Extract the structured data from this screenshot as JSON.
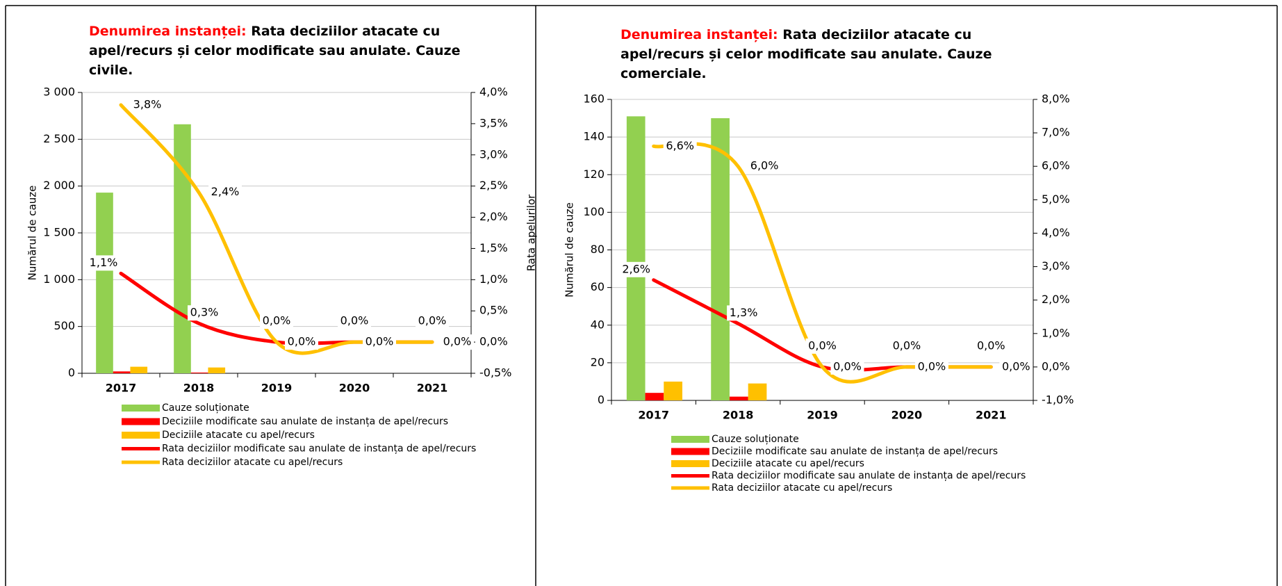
{
  "chart_data": [
    {
      "type": "combo",
      "title_label": "Denumirea instanței:",
      "title": "Rata deciziilor atacate cu apel/recurs și celor modificate sau anulate. Cauze civile.",
      "y_label": "Numărul de cauze",
      "y2_label": "Rata apelurilor",
      "categories": [
        "2017",
        "2018",
        "2019",
        "2020",
        "2021"
      ],
      "ylim": [
        0,
        3000
      ],
      "yticks": [
        0,
        500,
        {
          "value": 1000,
          "label": "1 000"
        },
        {
          "value": 1500,
          "label": "1 500"
        },
        {
          "value": 2000,
          "label": "2 000"
        },
        {
          "value": 2500,
          "label": "2 500"
        },
        {
          "value": 3000,
          "label": "3 000"
        }
      ],
      "y2lim": [
        -0.5,
        4.0
      ],
      "y2ticks": [
        {
          "value": -0.5,
          "label": "-0,5%"
        },
        {
          "value": 0,
          "label": "0,0%"
        },
        {
          "value": 0.5,
          "label": "0,5%"
        },
        {
          "value": 1.0,
          "label": "1,0%"
        },
        {
          "value": 1.5,
          "label": "1,5%"
        },
        {
          "value": 2.0,
          "label": "2,0%"
        },
        {
          "value": 2.5,
          "label": "2,5%"
        },
        {
          "value": 3.0,
          "label": "3,0%"
        },
        {
          "value": 3.5,
          "label": "3,5%"
        },
        {
          "value": 4.0,
          "label": "4,0%"
        }
      ],
      "grid": true,
      "series": [
        {
          "name": "Cauze soluționate",
          "type": "bar",
          "color": "#92d050",
          "values": [
            1930,
            2660,
            0,
            0,
            0
          ]
        },
        {
          "name": "Deciziile modificate sau anulate de instanța de apel/recurs",
          "type": "bar",
          "color": "#ff0000",
          "values": [
            20,
            8,
            0,
            0,
            0
          ]
        },
        {
          "name": "Deciziile atacate cu apel/recurs",
          "type": "bar",
          "color": "#ffc000",
          "values": [
            70,
            62,
            0,
            0,
            0
          ]
        },
        {
          "name": "Rata deciziilor modificate sau anulate de instanța de apel/recurs",
          "type": "line",
          "axis": "y2",
          "color": "#ff0000",
          "values": [
            1.1,
            0.3,
            0,
            0,
            0
          ],
          "value_labels": [
            "1,1%",
            "0,3%",
            "0,0%",
            "0,0%",
            "0,0%"
          ]
        },
        {
          "name": "Rata deciziilor atacate cu apel/recurs",
          "type": "line",
          "axis": "y2",
          "color": "#ffc000",
          "values": [
            3.8,
            2.4,
            0,
            0,
            0
          ],
          "value_labels": [
            "3,8%",
            "2,4%",
            "0,0%",
            "0,0%",
            "0,0%"
          ]
        }
      ]
    },
    {
      "type": "combo",
      "title_label": "Denumirea instanței:",
      "title": "Rata deciziilor atacate cu apel/recurs și celor modificate sau anulate. Cauze comerciale.",
      "y_label": "Numărul de cauze",
      "categories": [
        "2017",
        "2018",
        "2019",
        "2020",
        "2021"
      ],
      "ylim": [
        0,
        160
      ],
      "yticks": [
        0,
        20,
        40,
        60,
        80,
        100,
        120,
        140,
        160
      ],
      "y2lim": [
        -1.0,
        8.0
      ],
      "y2ticks": [
        {
          "value": -1.0,
          "label": "-1,0%"
        },
        {
          "value": 0,
          "label": "0,0%"
        },
        {
          "value": 1.0,
          "label": "1,0%"
        },
        {
          "value": 2.0,
          "label": "2,0%"
        },
        {
          "value": 3.0,
          "label": "3,0%"
        },
        {
          "value": 4.0,
          "label": "4,0%"
        },
        {
          "value": 5.0,
          "label": "5,0%"
        },
        {
          "value": 6.0,
          "label": "6,0%"
        },
        {
          "value": 7.0,
          "label": "7,0%"
        },
        {
          "value": 8.0,
          "label": "8,0%"
        }
      ],
      "grid": true,
      "series": [
        {
          "name": "Cauze soluționate",
          "type": "bar",
          "color": "#92d050",
          "values": [
            151,
            150,
            0,
            0,
            0
          ]
        },
        {
          "name": "Deciziile modificate sau anulate de instanța de apel/recurs",
          "type": "bar",
          "color": "#ff0000",
          "values": [
            4,
            2,
            0,
            0,
            0
          ]
        },
        {
          "name": "Deciziile atacate cu apel/recurs",
          "type": "bar",
          "color": "#ffc000",
          "values": [
            10,
            9,
            0,
            0,
            0
          ]
        },
        {
          "name": "Rata deciziilor modificate sau anulate de instanța de apel/recurs",
          "type": "line",
          "axis": "y2",
          "color": "#ff0000",
          "values": [
            2.6,
            1.3,
            0,
            0,
            0
          ],
          "value_labels": [
            "2,6%",
            "1,3%",
            "0,0%",
            "0,0%",
            "0,0%"
          ]
        },
        {
          "name": "Rata deciziilor atacate cu apel/recurs",
          "type": "line",
          "axis": "y2",
          "color": "#ffc000",
          "values": [
            6.6,
            6.0,
            0,
            0,
            0
          ],
          "value_labels": [
            "6,6%",
            "6,0%",
            "0,0%",
            "0,0%",
            "0,0%"
          ]
        }
      ]
    }
  ]
}
